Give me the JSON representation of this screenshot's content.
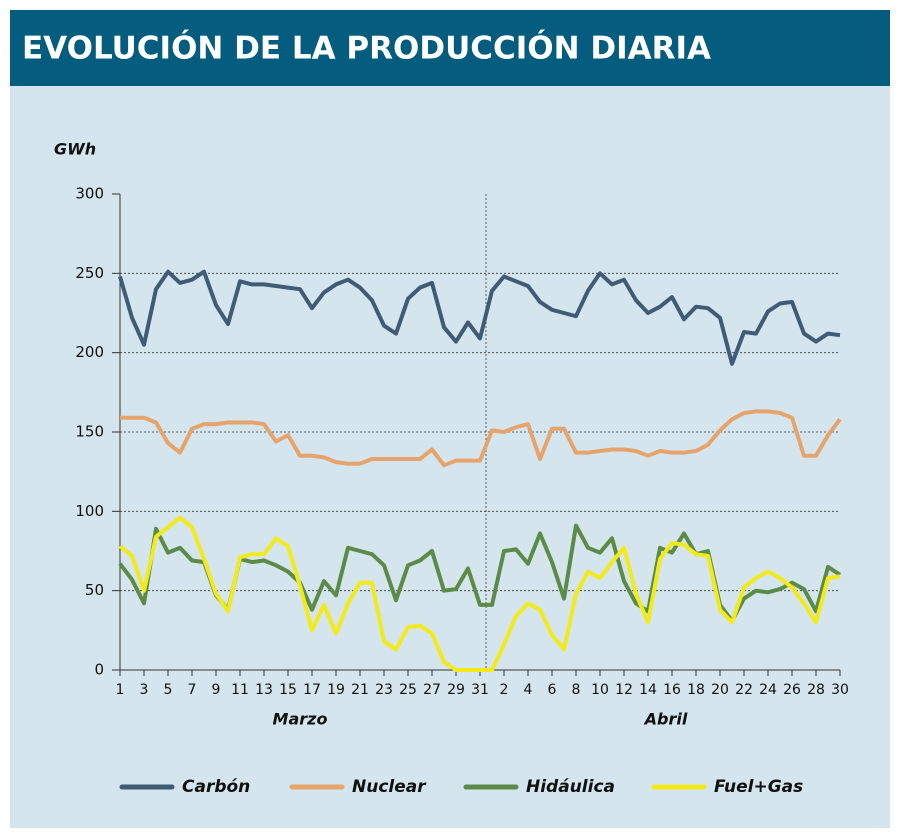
{
  "chart_data": {
    "type": "line",
    "title": "EVOLUCIÓN DE LA PRODUCCIÓN DIARIA",
    "y_label": "GWh",
    "groups": [
      {
        "label": "Marzo",
        "categories": [
          "1",
          null,
          "3",
          null,
          "5",
          null,
          "7",
          null,
          "9",
          null,
          "11",
          null,
          "13",
          null,
          "15",
          null,
          "17",
          null,
          "19",
          null,
          "21",
          null,
          "23",
          null,
          "25",
          null,
          "27",
          null,
          "29",
          null,
          "31"
        ]
      },
      {
        "label": "Abril",
        "categories": [
          null,
          "2",
          null,
          "4",
          null,
          "6",
          null,
          "8",
          null,
          "10",
          null,
          "12",
          null,
          "14",
          null,
          "16",
          null,
          "18",
          null,
          "20",
          null,
          "22",
          null,
          "24",
          null,
          "26",
          null,
          "28",
          null,
          "30"
        ]
      }
    ],
    "ylim": [
      0,
      300
    ],
    "yticks": [
      0,
      50,
      100,
      150,
      200,
      250,
      300
    ],
    "grid": true,
    "series": [
      {
        "name": "Carbón",
        "color": "#3f5b75",
        "values": [
          248,
          222,
          205,
          240,
          251,
          244,
          246,
          251,
          230,
          218,
          245,
          243,
          243,
          242,
          241,
          240,
          228,
          238,
          243,
          246,
          241,
          233,
          217,
          212,
          234,
          241,
          244,
          216,
          207,
          219,
          209,
          239,
          248,
          245,
          242,
          232,
          227,
          225,
          223,
          239,
          250,
          243,
          246,
          233,
          225,
          229,
          235,
          221,
          229,
          228,
          222,
          193,
          213,
          212,
          226,
          231,
          232,
          212,
          207,
          212,
          211
        ]
      },
      {
        "name": "Nuclear",
        "color": "#e6a46c",
        "values": [
          159,
          159,
          159,
          156,
          143,
          137,
          152,
          155,
          155,
          156,
          156,
          156,
          155,
          144,
          148,
          135,
          135,
          134,
          131,
          130,
          130,
          133,
          133,
          133,
          133,
          133,
          139,
          129,
          132,
          132,
          132,
          151,
          150,
          153,
          155,
          133,
          152,
          152,
          137,
          137,
          138,
          139,
          139,
          138,
          135,
          138,
          137,
          137,
          138,
          142,
          151,
          158,
          162,
          163,
          163,
          162,
          159,
          135,
          135,
          148,
          158
        ]
      },
      {
        "name": "Hidáulica",
        "color": "#5b8b47",
        "values": [
          67,
          57,
          42,
          89,
          74,
          77,
          69,
          68,
          47,
          38,
          70,
          68,
          69,
          66,
          62,
          55,
          38,
          56,
          47,
          77,
          75,
          73,
          66,
          44,
          66,
          69,
          75,
          50,
          51,
          64,
          41,
          41,
          75,
          76,
          67,
          86,
          68,
          45,
          91,
          77,
          74,
          83,
          56,
          42,
          37,
          77,
          74,
          86,
          73,
          75,
          41,
          31,
          45,
          50,
          49,
          51,
          55,
          51,
          37,
          65,
          60
        ]
      },
      {
        "name": "Fuel+Gas",
        "color": "#f2ea1a",
        "values": [
          78,
          72,
          50,
          84,
          90,
          96,
          90,
          70,
          48,
          37,
          71,
          73,
          73,
          83,
          78,
          53,
          25,
          41,
          23,
          42,
          55,
          55,
          18,
          13,
          27,
          28,
          23,
          5,
          0,
          0,
          0,
          0,
          16,
          34,
          42,
          38,
          22,
          13,
          48,
          62,
          58,
          68,
          77,
          48,
          30,
          70,
          80,
          79,
          73,
          72,
          38,
          30,
          52,
          58,
          62,
          58,
          52,
          42,
          30,
          58,
          59
        ]
      }
    ]
  }
}
